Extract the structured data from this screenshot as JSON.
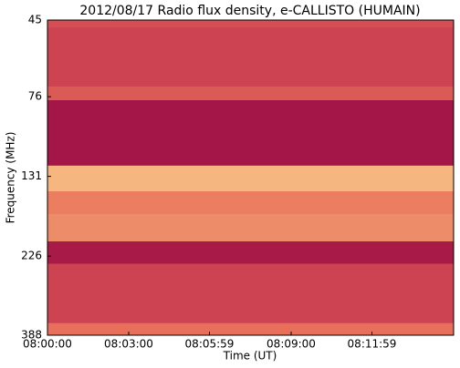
{
  "chart_data": {
    "type": "spectrogram",
    "title": "2012/08/17  Radio flux density, e-CALLISTO (HUMAIN)",
    "x_label": "Time (UT)",
    "y_label": "Frequency (MHz)",
    "xlim": [
      "08:00:00",
      "08:15:00"
    ],
    "xticks": [
      "08:00:00",
      "08:03:00",
      "08:05:59",
      "08:09:00",
      "08:11:59"
    ],
    "ylim": [
      388,
      45
    ],
    "yticks": [
      45,
      76,
      131,
      226,
      388
    ],
    "log_y": true,
    "y_edges": [
      45,
      47.3,
      70.9,
      77.8,
      121.8,
      145,
      169.5,
      204.3,
      238.6,
      357.7,
      388
    ],
    "intensity": [
      0.35,
      0.3,
      0.4,
      0.05,
      0.75,
      0.55,
      0.6,
      0.08,
      0.3,
      0.5
    ],
    "colormap": [
      "#9a0e45",
      "#c6384f",
      "#e8705a",
      "#f5b77f",
      "#fdf1b8"
    ]
  }
}
